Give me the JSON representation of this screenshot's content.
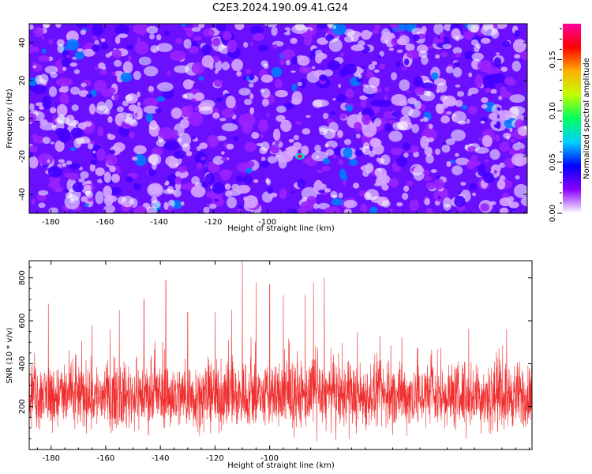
{
  "figure_title": "C2E3.2024.190.09.41.G24",
  "chart_data": [
    {
      "type": "heatmap",
      "xlabel": "Height of straight line (km)",
      "ylabel": "Frequency (Hz)",
      "xlim": [
        -188,
        -4
      ],
      "ylim": [
        -50,
        50
      ],
      "xticks": [
        -180,
        -160,
        -140,
        -120,
        -100
      ],
      "yticks": [
        -40,
        -20,
        0,
        20,
        40
      ],
      "colorbar": {
        "label": "Normalized spectral amplitude",
        "range": [
          0.0,
          0.185
        ],
        "ticks": [
          "0.00",
          "0.05",
          "0.10",
          "0.15"
        ],
        "colors": [
          "#ffffff",
          "#8a00ff",
          "#0000ff",
          "#00d0ff",
          "#00ff60",
          "#c0ff00",
          "#ffb000",
          "#ff0000",
          "#ff00a0"
        ]
      },
      "description_values": {
        "typical_amplitude": 0.02,
        "peak_amplitude": 0.18,
        "peak_location": {
          "x": -88,
          "y": -20
        }
      }
    },
    {
      "type": "line",
      "xlabel": "Height of straight line (km)",
      "ylabel": "SNR (10 * v/v)",
      "xlim": [
        -188,
        -4
      ],
      "ylim": [
        0,
        880
      ],
      "xticks": [
        -180,
        -160,
        -140,
        -120,
        -100
      ],
      "yticks": [
        200,
        400,
        600,
        800
      ],
      "series": [
        {
          "color": "#f03030",
          "baseline": 250,
          "notable_peaks": [
            {
              "x": -186,
              "y": 450
            },
            {
              "x": -181,
              "y": 680
            },
            {
              "x": -165,
              "y": 580
            },
            {
              "x": -155,
              "y": 650
            },
            {
              "x": -146,
              "y": 700
            },
            {
              "x": -138,
              "y": 790
            },
            {
              "x": -130,
              "y": 640
            },
            {
              "x": -120,
              "y": 640
            },
            {
              "x": -114,
              "y": 650
            },
            {
              "x": -110,
              "y": 880
            },
            {
              "x": -105,
              "y": 780
            },
            {
              "x": -100,
              "y": 770
            },
            {
              "x": -95,
              "y": 720
            },
            {
              "x": -87,
              "y": 720
            },
            {
              "x": -84,
              "y": 780
            },
            {
              "x": -80,
              "y": 800
            }
          ]
        }
      ]
    }
  ]
}
